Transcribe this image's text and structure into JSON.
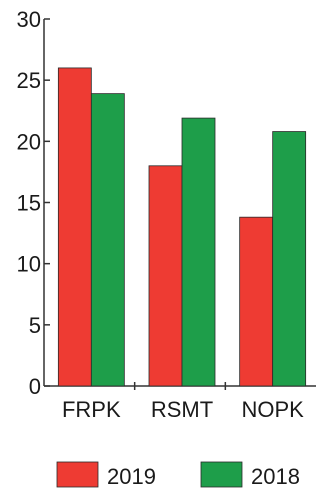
{
  "chart_data": {
    "type": "bar",
    "categories": [
      "FRPK",
      "RSMT",
      "NOPK"
    ],
    "series": [
      {
        "name": "2019",
        "values": [
          26,
          18,
          13.8
        ],
        "color": "#ee3b33"
      },
      {
        "name": "2018",
        "values": [
          23.9,
          21.9,
          20.8
        ],
        "color": "#1e9e4a"
      }
    ],
    "title": "",
    "xlabel": "",
    "ylabel": "",
    "ylim": [
      0,
      30
    ],
    "yticks": [
      "0",
      "5",
      "10",
      "15",
      "20",
      "25",
      "30"
    ],
    "grid": false,
    "legend_position": "bottom"
  }
}
